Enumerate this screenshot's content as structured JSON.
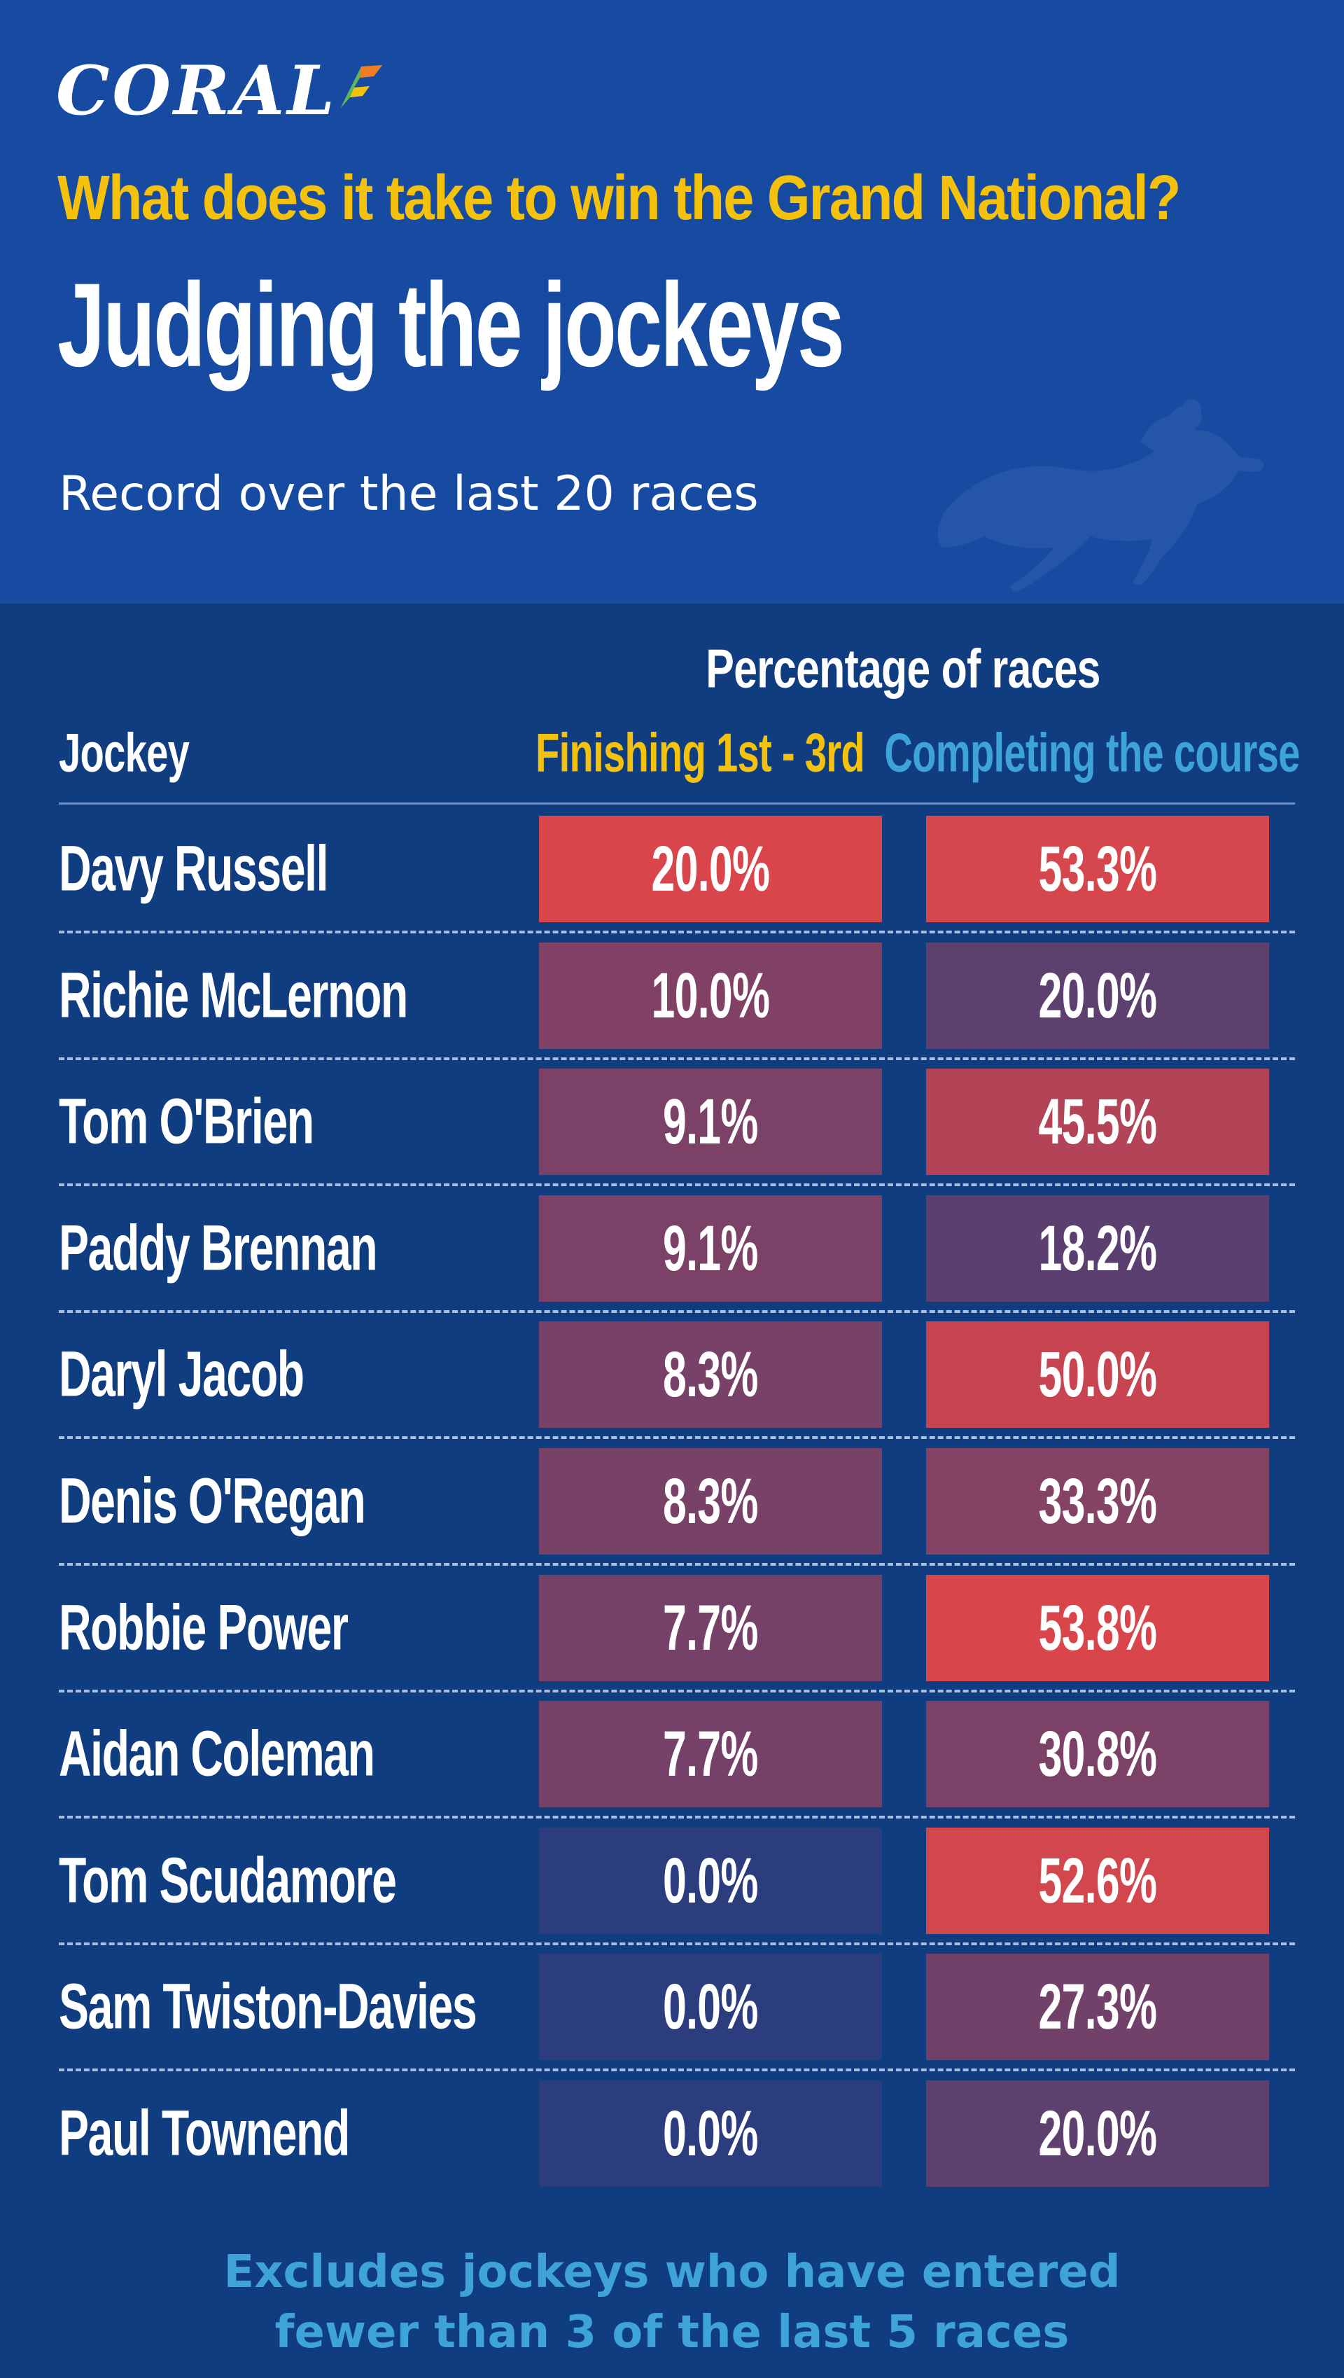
{
  "brand": {
    "name": "CORAL",
    "colors": {
      "header_bg": "#164ba1",
      "body_bg": "#0f3d80",
      "accent_yellow": "#f4c20d",
      "accent_blue": "#3ea3d9",
      "logo_green": "#5cb85c",
      "logo_orange": "#f07d22"
    }
  },
  "header": {
    "question": "What does it take to win the Grand National?",
    "title": "Judging the jockeys",
    "subtitle": "Record over the last 20 races",
    "decoration": "horse-and-jockey-silhouette-icon"
  },
  "table": {
    "group_header": "Percentage of races",
    "columns": {
      "jockey": "Jockey",
      "finishing": "Finishing 1st - 3rd",
      "completing": "Completing the course"
    },
    "color_scale": {
      "low": "#2c3d7d",
      "high": "#d8464c"
    },
    "rows": [
      {
        "jockey": "Davy Russell",
        "finishing_label": "20.0%",
        "completing_label": "53.3%"
      },
      {
        "jockey": "Richie McLernon",
        "finishing_label": "10.0%",
        "completing_label": "20.0%"
      },
      {
        "jockey": "Tom O'Brien",
        "finishing_label": "9.1%",
        "completing_label": "45.5%"
      },
      {
        "jockey": "Paddy Brennan",
        "finishing_label": "9.1%",
        "completing_label": "18.2%"
      },
      {
        "jockey": "Daryl Jacob",
        "finishing_label": "8.3%",
        "completing_label": "50.0%"
      },
      {
        "jockey": "Denis O'Regan",
        "finishing_label": "8.3%",
        "completing_label": "33.3%"
      },
      {
        "jockey": "Robbie Power",
        "finishing_label": "7.7%",
        "completing_label": "53.8%"
      },
      {
        "jockey": "Aidan Coleman",
        "finishing_label": "7.7%",
        "completing_label": "30.8%"
      },
      {
        "jockey": "Tom Scudamore",
        "finishing_label": "0.0%",
        "completing_label": "52.6%"
      },
      {
        "jockey": "Sam Twiston-Davies",
        "finishing_label": "0.0%",
        "completing_label": "27.3%"
      },
      {
        "jockey": "Paul Townend",
        "finishing_label": "0.0%",
        "completing_label": "20.0%"
      }
    ]
  },
  "footnote": {
    "line1": "Excludes jockeys who have entered",
    "line2": "fewer than 3 of the last 5 races"
  },
  "chart_data": {
    "type": "table",
    "title": "Judging the jockeys",
    "subtitle": "Record over the last 20 races",
    "column_group": "Percentage of races",
    "columns": [
      "Jockey",
      "Finishing 1st - 3rd",
      "Completing the course"
    ],
    "categories": [
      "Davy Russell",
      "Richie McLernon",
      "Tom O'Brien",
      "Paddy Brennan",
      "Daryl Jacob",
      "Denis O'Regan",
      "Robbie Power",
      "Aidan Coleman",
      "Tom Scudamore",
      "Sam Twiston-Davies",
      "Paul Townend"
    ],
    "series": [
      {
        "name": "Finishing 1st - 3rd",
        "values": [
          20.0,
          10.0,
          9.1,
          9.1,
          8.3,
          8.3,
          7.7,
          7.7,
          0.0,
          0.0,
          0.0
        ]
      },
      {
        "name": "Completing the course",
        "values": [
          53.3,
          20.0,
          45.5,
          18.2,
          50.0,
          33.3,
          53.8,
          30.8,
          52.6,
          27.3,
          20.0
        ]
      }
    ],
    "color_encoding": "heatmap per column, dark blue (low) to red (high)"
  }
}
